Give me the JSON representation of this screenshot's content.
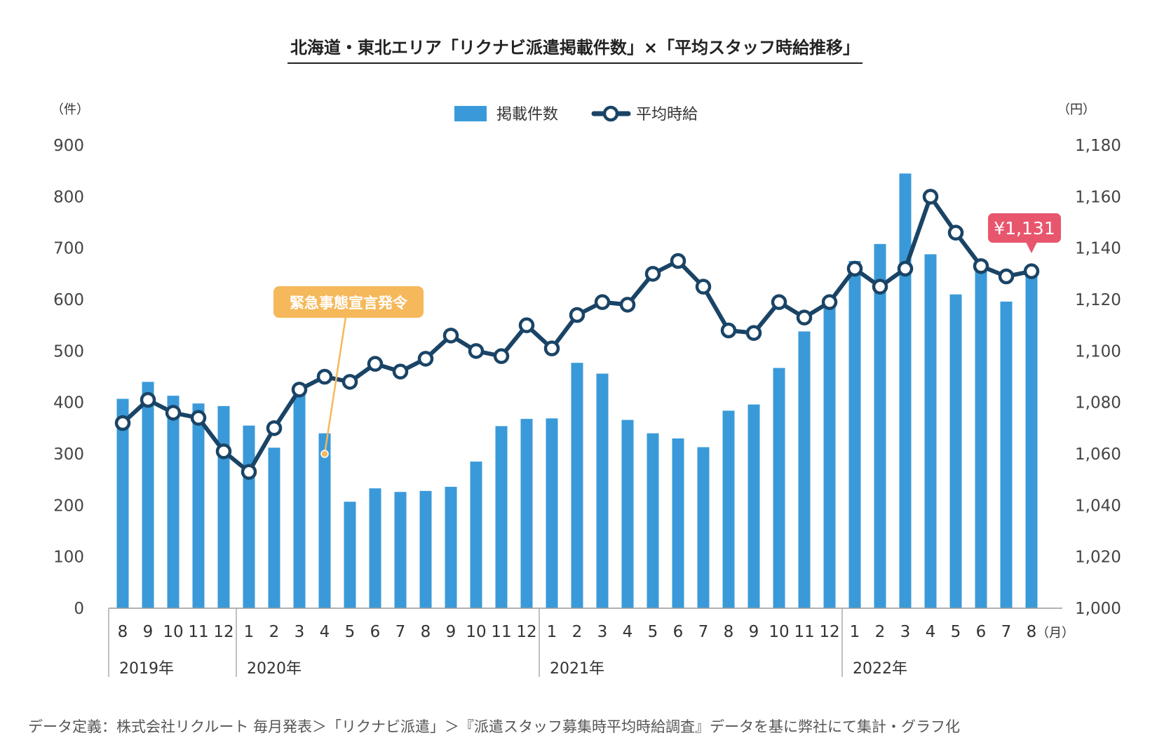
{
  "title": "北海道・東北エリア「リクナビ派遣掲載件数」×「平均スタッフ時給推移」",
  "footnote": "データ定義：株式会社リクルート 毎月発表＞「リクナビ派遣」＞『派遣スタッフ募集時平均時給調査』データを基に弊社にて集計・グラフ化",
  "colors": {
    "bar": "#3a9ad9",
    "line": "#1a4466",
    "callout": "#f5b85a",
    "badge": "#e8566e"
  },
  "chart_data": {
    "type": "bar+line",
    "y_left": {
      "unit": "（件）",
      "min": 0,
      "max": 900,
      "ticks": [
        "0",
        "100",
        "200",
        "300",
        "400",
        "500",
        "600",
        "700",
        "800",
        "900"
      ]
    },
    "y_right": {
      "unit": "（円）",
      "min": 1000,
      "max": 1180,
      "ticks": [
        "1,000",
        "1,020",
        "1,040",
        "1,060",
        "1,080",
        "1,100",
        "1,120",
        "1,140",
        "1,160",
        "1,180"
      ]
    },
    "x_unit": "（月）",
    "categories": [
      "8",
      "9",
      "10",
      "11",
      "12",
      "1",
      "2",
      "3",
      "4",
      "5",
      "6",
      "7",
      "8",
      "9",
      "10",
      "11",
      "12",
      "1",
      "2",
      "3",
      "4",
      "5",
      "6",
      "7",
      "8",
      "9",
      "10",
      "11",
      "12",
      "1",
      "2",
      "3",
      "4",
      "5",
      "6",
      "7",
      "8"
    ],
    "year_groups": [
      {
        "label": "2019年",
        "start": 0,
        "count": 5
      },
      {
        "label": "2020年",
        "start": 5,
        "count": 12
      },
      {
        "label": "2021年",
        "start": 17,
        "count": 12
      },
      {
        "label": "2022年",
        "start": 29,
        "count": 8
      }
    ],
    "legend": {
      "bar_label": "掲載件数",
      "line_label": "平均時給",
      "position": "top-center"
    },
    "series": [
      {
        "name": "掲載件数",
        "type": "bar",
        "axis": "left",
        "values": [
          407,
          440,
          413,
          398,
          393,
          355,
          312,
          427,
          340,
          207,
          233,
          226,
          228,
          236,
          285,
          354,
          368,
          369,
          477,
          456,
          366,
          340,
          330,
          313,
          384,
          396,
          467,
          538,
          590,
          675,
          708,
          845,
          688,
          610,
          660,
          596,
          655
        ]
      },
      {
        "name": "平均時給",
        "type": "line",
        "axis": "right",
        "values": [
          1072,
          1081,
          1076,
          1074,
          1061,
          1053,
          1070,
          1085,
          1090,
          1088,
          1095,
          1092,
          1097,
          1106,
          1100,
          1098,
          1110,
          1101,
          1114,
          1119,
          1118,
          1130,
          1135,
          1125,
          1108,
          1107,
          1119,
          1113,
          1119,
          1132,
          1125,
          1132,
          1160,
          1146,
          1133,
          1129,
          1131
        ]
      }
    ],
    "annotations": {
      "callout_text": "緊急事態宣言発令",
      "callout_index": 8,
      "callout_value": 300,
      "badge_text": "¥1,131",
      "badge_index": 36
    }
  }
}
